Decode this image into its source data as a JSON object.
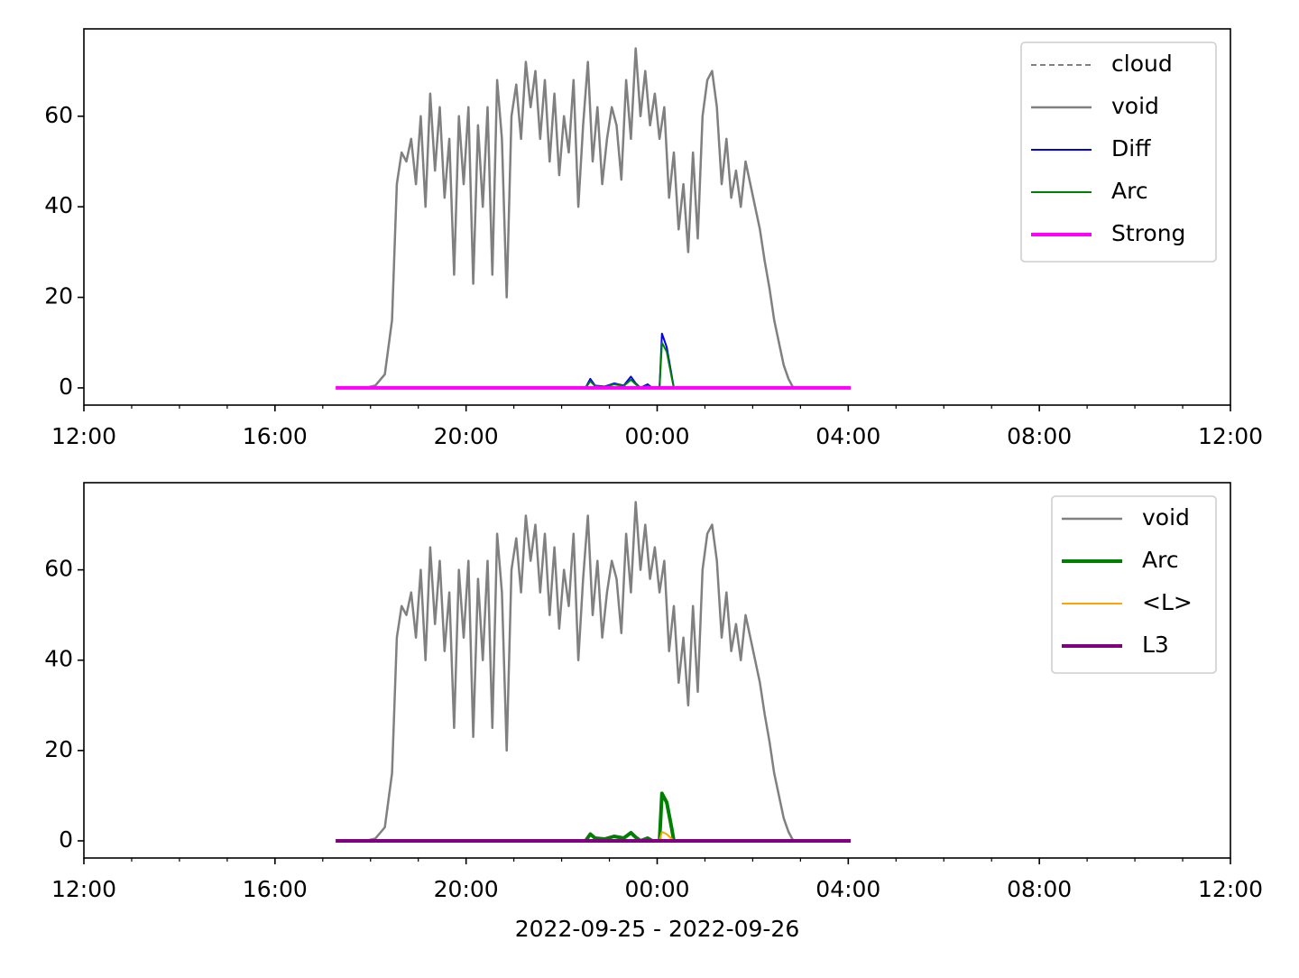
{
  "chart_data": [
    {
      "type": "line",
      "xlim": [
        0,
        24
      ],
      "ylim": [
        -3.8,
        79.3
      ],
      "xticks": [
        {
          "value": 0,
          "label": "12:00"
        },
        {
          "value": 4,
          "label": "16:00"
        },
        {
          "value": 8,
          "label": "20:00"
        },
        {
          "value": 12,
          "label": "00:00"
        },
        {
          "value": 16,
          "label": "04:00"
        },
        {
          "value": 20,
          "label": "08:00"
        },
        {
          "value": 24,
          "label": "12:00"
        }
      ],
      "xminorticks": [
        1,
        2,
        3,
        5,
        6,
        7,
        9,
        10,
        11,
        13,
        14,
        15,
        17,
        18,
        19,
        21,
        22,
        23
      ],
      "yticks": [
        0,
        20,
        40,
        60
      ],
      "legend": "upper right",
      "series": [
        {
          "name": "cloud",
          "color": "#808080",
          "width": 2,
          "dash": "6,4",
          "x": [
            5.9,
            6.1,
            6.3,
            6.45,
            6.55,
            6.65,
            6.75,
            6.85,
            6.95,
            7.05,
            7.15,
            7.25,
            7.35,
            7.45,
            7.55,
            7.65,
            7.75,
            7.85,
            7.95,
            8.05,
            8.15,
            8.25,
            8.35,
            8.45,
            8.55,
            8.65,
            8.75,
            8.85,
            8.95,
            9.05,
            9.15,
            9.25,
            9.35,
            9.45,
            9.55,
            9.65,
            9.75,
            9.85,
            9.95,
            10.05,
            10.15,
            10.25,
            10.35,
            10.45,
            10.55,
            10.65,
            10.75,
            10.85,
            10.95,
            11.05,
            11.15,
            11.25,
            11.35,
            11.45,
            11.55,
            11.65,
            11.75,
            11.85,
            11.95,
            12.05,
            12.15,
            12.25,
            12.35,
            12.45,
            12.55,
            12.65,
            12.75,
            12.85,
            12.95,
            13.05,
            13.15,
            13.25,
            13.35,
            13.45,
            13.55,
            13.65,
            13.75,
            13.85,
            13.95,
            14.05,
            14.15,
            14.25,
            14.35,
            14.45,
            14.55,
            14.65,
            14.75,
            14.85
          ],
          "values": [
            0,
            0.5,
            3,
            15,
            45,
            52,
            50,
            55,
            45,
            60,
            40,
            65,
            48,
            62,
            42,
            55,
            25,
            60,
            45,
            62,
            23,
            58,
            40,
            62,
            25,
            68,
            55,
            20,
            60,
            67,
            55,
            72,
            62,
            70,
            55,
            68,
            50,
            65,
            47,
            60,
            52,
            68,
            40,
            58,
            72,
            50,
            62,
            45,
            55,
            62,
            58,
            46,
            68,
            55,
            75,
            60,
            70,
            58,
            65,
            55,
            62,
            42,
            52,
            35,
            45,
            30,
            52,
            33,
            60,
            68,
            70,
            62,
            45,
            55,
            42,
            48,
            40,
            50,
            45,
            40,
            35,
            28,
            22,
            15,
            10,
            5,
            2,
            0
          ]
        },
        {
          "name": "void",
          "color": "#808080",
          "width": 2.5,
          "x": [
            5.9,
            6.1,
            6.3,
            6.45,
            6.55,
            6.65,
            6.75,
            6.85,
            6.95,
            7.05,
            7.15,
            7.25,
            7.35,
            7.45,
            7.55,
            7.65,
            7.75,
            7.85,
            7.95,
            8.05,
            8.15,
            8.25,
            8.35,
            8.45,
            8.55,
            8.65,
            8.75,
            8.85,
            8.95,
            9.05,
            9.15,
            9.25,
            9.35,
            9.45,
            9.55,
            9.65,
            9.75,
            9.85,
            9.95,
            10.05,
            10.15,
            10.25,
            10.35,
            10.45,
            10.55,
            10.65,
            10.75,
            10.85,
            10.95,
            11.05,
            11.15,
            11.25,
            11.35,
            11.45,
            11.55,
            11.65,
            11.75,
            11.85,
            11.95,
            12.05,
            12.15,
            12.25,
            12.35,
            12.45,
            12.55,
            12.65,
            12.75,
            12.85,
            12.95,
            13.05,
            13.15,
            13.25,
            13.35,
            13.45,
            13.55,
            13.65,
            13.75,
            13.85,
            13.95,
            14.05,
            14.15,
            14.25,
            14.35,
            14.45,
            14.55,
            14.65,
            14.75,
            14.85
          ],
          "values": [
            0,
            0.5,
            3,
            15,
            45,
            52,
            50,
            55,
            45,
            60,
            40,
            65,
            48,
            62,
            42,
            55,
            25,
            60,
            45,
            62,
            23,
            58,
            40,
            62,
            25,
            68,
            55,
            20,
            60,
            67,
            55,
            72,
            62,
            70,
            55,
            68,
            50,
            65,
            47,
            60,
            52,
            68,
            40,
            58,
            72,
            50,
            62,
            45,
            55,
            62,
            58,
            46,
            68,
            55,
            75,
            60,
            70,
            58,
            65,
            55,
            62,
            42,
            52,
            35,
            45,
            30,
            52,
            33,
            60,
            68,
            70,
            62,
            45,
            55,
            42,
            48,
            40,
            50,
            45,
            40,
            35,
            28,
            22,
            15,
            10,
            5,
            2,
            0
          ]
        },
        {
          "name": "Diff",
          "color": "#0000ff",
          "width": 2,
          "x": [
            10.5,
            10.6,
            10.7,
            10.9,
            11.1,
            11.3,
            11.45,
            11.55,
            11.65,
            11.8,
            11.9,
            12.05,
            12.1,
            12.2,
            12.3,
            12.35
          ],
          "values": [
            0,
            2,
            0.5,
            0.3,
            1,
            0.5,
            2.5,
            1,
            0,
            0.8,
            0,
            0,
            12,
            9,
            3,
            0
          ]
        },
        {
          "name": "Arc",
          "color": "#008000",
          "width": 2,
          "x": [
            10.5,
            10.6,
            10.7,
            10.9,
            11.1,
            11.3,
            11.45,
            11.55,
            11.65,
            11.8,
            11.9,
            12.05,
            12.1,
            12.2,
            12.3,
            12.35
          ],
          "values": [
            0,
            1.5,
            0.4,
            0.2,
            0.8,
            0.4,
            1.8,
            0.8,
            0,
            0.5,
            0,
            0,
            10,
            8,
            2.5,
            0
          ]
        },
        {
          "name": "Strong",
          "color": "#ff00ff",
          "width": 4,
          "x": [
            5.27,
            16.05
          ],
          "values": [
            0,
            0
          ]
        }
      ]
    },
    {
      "type": "line",
      "xlabel": "2022-09-25 - 2022-09-26",
      "xlim": [
        0,
        24
      ],
      "ylim": [
        -3.8,
        79.3
      ],
      "xticks": [
        {
          "value": 0,
          "label": "12:00"
        },
        {
          "value": 4,
          "label": "16:00"
        },
        {
          "value": 8,
          "label": "20:00"
        },
        {
          "value": 12,
          "label": "00:00"
        },
        {
          "value": 16,
          "label": "04:00"
        },
        {
          "value": 20,
          "label": "08:00"
        },
        {
          "value": 24,
          "label": "12:00"
        }
      ],
      "xminorticks": [
        1,
        2,
        3,
        5,
        6,
        7,
        9,
        10,
        11,
        13,
        14,
        15,
        17,
        18,
        19,
        21,
        22,
        23
      ],
      "yticks": [
        0,
        20,
        40,
        60
      ],
      "legend": "upper right",
      "series": [
        {
          "name": "void",
          "color": "#808080",
          "width": 2.5,
          "x": [
            5.9,
            6.1,
            6.3,
            6.45,
            6.55,
            6.65,
            6.75,
            6.85,
            6.95,
            7.05,
            7.15,
            7.25,
            7.35,
            7.45,
            7.55,
            7.65,
            7.75,
            7.85,
            7.95,
            8.05,
            8.15,
            8.25,
            8.35,
            8.45,
            8.55,
            8.65,
            8.75,
            8.85,
            8.95,
            9.05,
            9.15,
            9.25,
            9.35,
            9.45,
            9.55,
            9.65,
            9.75,
            9.85,
            9.95,
            10.05,
            10.15,
            10.25,
            10.35,
            10.45,
            10.55,
            10.65,
            10.75,
            10.85,
            10.95,
            11.05,
            11.15,
            11.25,
            11.35,
            11.45,
            11.55,
            11.65,
            11.75,
            11.85,
            11.95,
            12.05,
            12.15,
            12.25,
            12.35,
            12.45,
            12.55,
            12.65,
            12.75,
            12.85,
            12.95,
            13.05,
            13.15,
            13.25,
            13.35,
            13.45,
            13.55,
            13.65,
            13.75,
            13.85,
            13.95,
            14.05,
            14.15,
            14.25,
            14.35,
            14.45,
            14.55,
            14.65,
            14.75,
            14.85
          ],
          "values": [
            0,
            0.5,
            3,
            15,
            45,
            52,
            50,
            55,
            45,
            60,
            40,
            65,
            48,
            62,
            42,
            55,
            25,
            60,
            45,
            62,
            23,
            58,
            40,
            62,
            25,
            68,
            55,
            20,
            60,
            67,
            55,
            72,
            62,
            70,
            55,
            68,
            50,
            65,
            47,
            60,
            52,
            68,
            40,
            58,
            72,
            50,
            62,
            45,
            55,
            62,
            58,
            46,
            68,
            55,
            75,
            60,
            70,
            58,
            65,
            55,
            62,
            42,
            52,
            35,
            45,
            30,
            52,
            33,
            60,
            68,
            70,
            62,
            45,
            55,
            42,
            48,
            40,
            50,
            45,
            40,
            35,
            28,
            22,
            15,
            10,
            5,
            2,
            0
          ]
        },
        {
          "name": "Arc",
          "color": "#008000",
          "width": 4,
          "x": [
            10.5,
            10.6,
            10.7,
            10.9,
            11.1,
            11.3,
            11.45,
            11.55,
            11.65,
            11.8,
            11.9,
            12.05,
            12.1,
            12.2,
            12.3,
            12.35
          ],
          "values": [
            0,
            1.5,
            0.6,
            0.4,
            1,
            0.6,
            1.8,
            0.8,
            0,
            0.6,
            0,
            0,
            10.5,
            8.5,
            3,
            0
          ]
        },
        {
          "name": "<L>",
          "color": "#ffa500",
          "width": 2,
          "x": [
            11.9,
            12.05,
            12.1,
            12.2,
            12.3,
            12.35
          ],
          "values": [
            0,
            0,
            2,
            1.5,
            0.5,
            0
          ]
        },
        {
          "name": "L3",
          "color": "#800080",
          "width": 4,
          "x": [
            5.27,
            16.05
          ],
          "values": [
            0,
            0
          ]
        }
      ]
    }
  ]
}
